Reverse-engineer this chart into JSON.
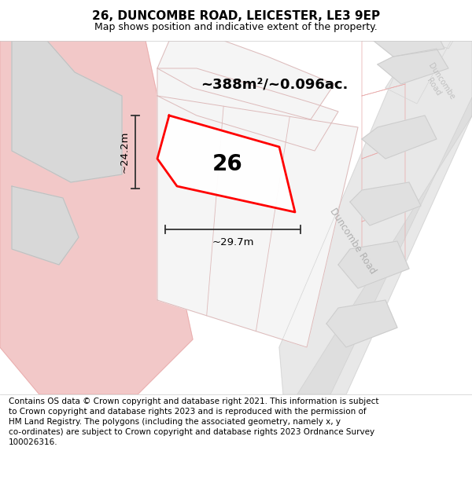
{
  "title": "26, DUNCOMBE ROAD, LEICESTER, LE3 9EP",
  "subtitle": "Map shows position and indicative extent of the property.",
  "footer": "Contains OS data © Crown copyright and database right 2021. This information is subject to Crown copyright and database rights 2023 and is reproduced with the permission of HM Land Registry. The polygons (including the associated geometry, namely x, y co-ordinates) are subject to Crown copyright and database rights 2023 Ordnance Survey 100026316.",
  "area_label": "~388m²/~0.096ac.",
  "width_label": "~29.7m",
  "height_label": "~24.2m",
  "number_label": "26",
  "pink_fill": "#f2c8c8",
  "pink_outline": "#e8a8a8",
  "red_outline": "#ff0000",
  "road_fill": "#e8e8e8",
  "road_outline": "#d0d0d0",
  "bld_fill": "#e0e0e0",
  "bld_outline": "#cccccc",
  "parcel_fill": "#f5f5f5",
  "parcel_outline": "#d8b8b8",
  "road_label_color": "#b0b0b0",
  "dim_line_color": "#333333",
  "title_fontsize": 11,
  "subtitle_fontsize": 9,
  "footer_fontsize": 7.5
}
